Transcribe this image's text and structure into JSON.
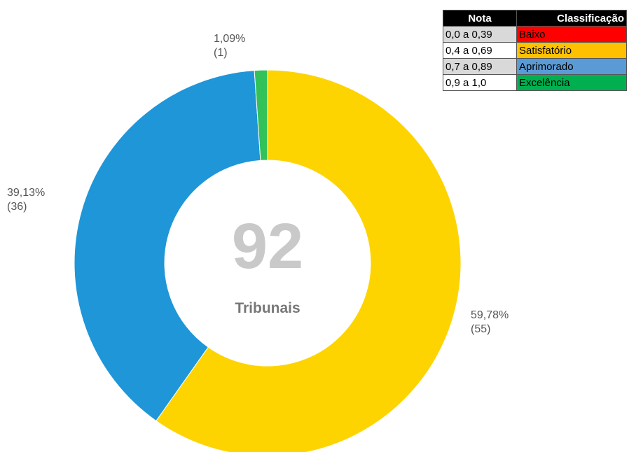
{
  "chart_data": {
    "type": "donut",
    "values": [
      59.78,
      39.13,
      1.09
    ],
    "value_labels": [
      "59,78%",
      "39,13%",
      "1,09%"
    ],
    "counts": [
      55,
      36,
      1
    ],
    "count_labels": [
      "(55)",
      "(36)",
      "(1)"
    ],
    "colors": [
      "#fdd400",
      "#1f96d8",
      "#33c15a"
    ],
    "center_value": 92,
    "center_label": "Tribunais",
    "legend_table": {
      "header": [
        "Nota",
        "Classificação"
      ],
      "rows": [
        [
          "0,0 a 0,39",
          "Baixo"
        ],
        [
          "0,4 a 0,69",
          "Satisfatório"
        ],
        [
          "0,7 a 0,89",
          "Aprimorado"
        ],
        [
          "0,9 a 1,0",
          "Excelência"
        ]
      ],
      "row_colors": [
        "#ff0000",
        "#ffc000",
        "#5b9bd5",
        "#00b050"
      ]
    }
  }
}
